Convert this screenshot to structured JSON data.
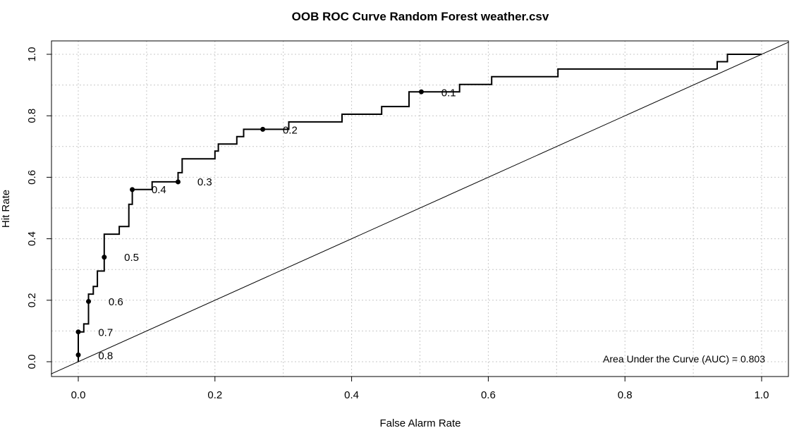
{
  "chart_data": {
    "type": "line",
    "title": "OOB ROC Curve Random Forest weather.csv",
    "xlabel": "False Alarm Rate",
    "ylabel": "Hit Rate",
    "xlim": [
      0,
      1
    ],
    "ylim": [
      0,
      1
    ],
    "x_ticks": [
      "0.0",
      "0.2",
      "0.4",
      "0.6",
      "0.8",
      "1.0"
    ],
    "y_ticks": [
      "0.0",
      "0.2",
      "0.4",
      "0.6",
      "0.8",
      "1.0"
    ],
    "grid": true,
    "annotation": "Area Under the Curve (AUC) = 0.803",
    "series": [
      {
        "x": [
          0.0,
          0.0,
          0.0,
          0.008,
          0.008,
          0.015,
          0.015,
          0.022,
          0.022,
          0.028,
          0.028,
          0.038,
          0.038,
          0.06,
          0.06,
          0.074,
          0.074,
          0.079,
          0.079,
          0.108,
          0.108,
          0.146,
          0.146,
          0.152,
          0.152,
          0.2,
          0.2,
          0.205,
          0.205,
          0.232,
          0.232,
          0.242,
          0.242,
          0.27,
          0.308,
          0.308,
          0.386,
          0.386,
          0.444,
          0.444,
          0.484,
          0.484,
          0.502,
          0.558,
          0.558,
          0.605,
          0.605,
          0.702,
          0.702,
          0.935,
          0.935,
          0.95,
          0.95,
          1.0
        ],
        "y": [
          0.0,
          0.022,
          0.097,
          0.097,
          0.123,
          0.123,
          0.22,
          0.22,
          0.245,
          0.245,
          0.295,
          0.295,
          0.415,
          0.415,
          0.44,
          0.44,
          0.512,
          0.512,
          0.56,
          0.56,
          0.585,
          0.585,
          0.615,
          0.615,
          0.66,
          0.66,
          0.685,
          0.685,
          0.708,
          0.708,
          0.732,
          0.732,
          0.756,
          0.756,
          0.756,
          0.78,
          0.78,
          0.805,
          0.805,
          0.83,
          0.83,
          0.878,
          0.878,
          0.878,
          0.902,
          0.902,
          0.927,
          0.927,
          0.952,
          0.952,
          0.976,
          0.976,
          1.0,
          1.0
        ]
      }
    ],
    "diagonal": {
      "x": [
        0,
        1
      ],
      "y": [
        0,
        1
      ]
    },
    "threshold_points": [
      {
        "label": "0.8",
        "x": 0.0,
        "y": 0.022,
        "lx": 0.04,
        "ly": 0.02
      },
      {
        "label": "0.7",
        "x": 0.0,
        "y": 0.097,
        "lx": 0.04,
        "ly": 0.095
      },
      {
        "label": "0.6",
        "x": 0.015,
        "y": 0.196,
        "lx": 0.055,
        "ly": 0.195
      },
      {
        "label": "0.5",
        "x": 0.038,
        "y": 0.34,
        "lx": 0.078,
        "ly": 0.34
      },
      {
        "label": "0.4",
        "x": 0.079,
        "y": 0.56,
        "lx": 0.118,
        "ly": 0.56
      },
      {
        "label": "0.3",
        "x": 0.146,
        "y": 0.585,
        "lx": 0.185,
        "ly": 0.585
      },
      {
        "label": "0.2",
        "x": 0.27,
        "y": 0.756,
        "lx": 0.31,
        "ly": 0.753
      },
      {
        "label": "0.1",
        "x": 0.502,
        "y": 0.878,
        "lx": 0.542,
        "ly": 0.875
      }
    ]
  }
}
